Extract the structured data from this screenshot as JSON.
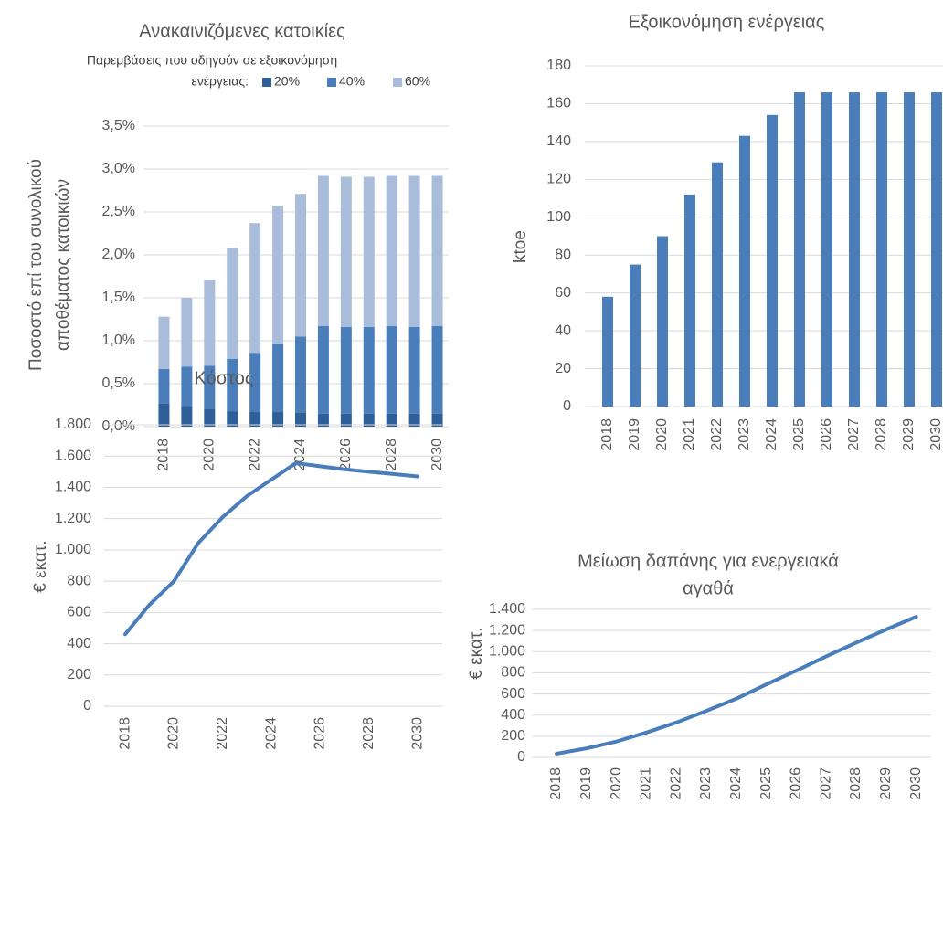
{
  "chart_data": [
    {
      "type": "stacked_bar",
      "title": "Ανακαινιζόμενες κατοικίες",
      "legend_title": [
        "Παρεμβάσεις που οδηγούν σε εξοικονόμηση",
        "ενέργειας:"
      ],
      "ylabel": [
        "Ποσοστό επί του συνολικού",
        "αποθέματος κατοικιών"
      ],
      "categories": [
        "2018",
        null,
        "2020",
        null,
        "2022",
        null,
        "2024",
        null,
        "2026",
        null,
        "2028",
        null,
        "2030"
      ],
      "series": [
        {
          "name": "20%",
          "color": "#2f5f98",
          "values": [
            0.27,
            0.24,
            0.21,
            0.18,
            0.17,
            0.17,
            0.16,
            0.15,
            0.15,
            0.15,
            0.15,
            0.15,
            0.15
          ]
        },
        {
          "name": "40%",
          "color": "#4a7ebb",
          "values": [
            0.4,
            0.46,
            0.5,
            0.61,
            0.69,
            0.8,
            0.89,
            1.02,
            1.01,
            1.01,
            1.02,
            1.01,
            1.02
          ]
        },
        {
          "name": "60%",
          "color": "#a9bcd9",
          "values": [
            0.61,
            0.8,
            1.0,
            1.29,
            1.51,
            1.6,
            1.66,
            1.75,
            1.75,
            1.75,
            1.75,
            1.76,
            1.75
          ]
        }
      ],
      "ylim": [
        0,
        3.5
      ],
      "yticks": [
        {
          "value": 0,
          "label": "0,0%"
        },
        {
          "value": 0.5,
          "label": "0,5%"
        },
        {
          "value": 1,
          "label": "1,0%"
        },
        {
          "value": 1.5,
          "label": "1,5%"
        },
        {
          "value": 2,
          "label": "2,0%"
        },
        {
          "value": 2.5,
          "label": "2,5%"
        },
        {
          "value": 3,
          "label": "3,0%"
        },
        {
          "value": 3.5,
          "label": "3,5%"
        }
      ],
      "grid": true
    },
    {
      "type": "bar",
      "title": "Εξοικονόμηση ενέργειας",
      "ylabel": [
        "ktoe"
      ],
      "categories": [
        "2018",
        "2019",
        "2020",
        "2021",
        "2022",
        "2023",
        "2024",
        "2025",
        "2026",
        "2027",
        "2028",
        "2029",
        "2030"
      ],
      "values": [
        58,
        75,
        90,
        112,
        129,
        143,
        154,
        166,
        166,
        166,
        166,
        166,
        166
      ],
      "color": "#4a7ebb",
      "ylim": [
        0,
        180
      ],
      "yticks": [
        0,
        20,
        40,
        60,
        80,
        100,
        120,
        140,
        160,
        180
      ],
      "grid": true
    },
    {
      "type": "line",
      "title": "Κόστος",
      "ylabel": [
        "€ εκατ."
      ],
      "categories": [
        "2018",
        null,
        "2020",
        null,
        "2022",
        null,
        "2024",
        null,
        "2026",
        null,
        "2028",
        null,
        "2030"
      ],
      "values": [
        460,
        650,
        800,
        1045,
        1210,
        1345,
        1450,
        1555,
        1535,
        1515,
        1500,
        1485,
        1470
      ],
      "color": "#4a7ebb",
      "ylim": [
        0,
        1800
      ],
      "yticks": [
        0,
        200,
        400,
        600,
        800,
        {
          "value": 1000,
          "label": "1.000"
        },
        {
          "value": 1200,
          "label": "1.200"
        },
        {
          "value": 1400,
          "label": "1.400"
        },
        {
          "value": 1600,
          "label": "1.600"
        },
        {
          "value": 1800,
          "label": "1.800"
        }
      ],
      "grid": true
    },
    {
      "type": "line",
      "title": [
        "Μείωση δαπάνης για ενεργειακά",
        "αγαθά"
      ],
      "ylabel": [
        "€ εκατ."
      ],
      "categories": [
        "2018",
        "2019",
        "2020",
        "2021",
        "2022",
        "2023",
        "2024",
        "2025",
        "2026",
        "2027",
        "2028",
        "2029",
        "2030"
      ],
      "values": [
        35,
        85,
        150,
        235,
        330,
        440,
        555,
        690,
        820,
        955,
        1085,
        1210,
        1330
      ],
      "color": "#4a7ebb",
      "ylim": [
        0,
        1400
      ],
      "yticks": [
        0,
        200,
        400,
        600,
        800,
        {
          "value": 1000,
          "label": "1.000"
        },
        {
          "value": 1200,
          "label": "1.200"
        },
        {
          "value": 1400,
          "label": "1.400"
        }
      ],
      "grid": true
    }
  ]
}
